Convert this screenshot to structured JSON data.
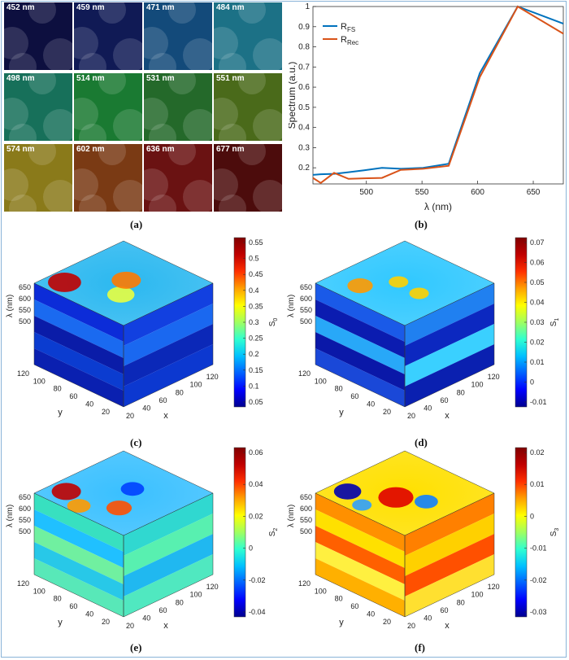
{
  "figure": {
    "panel_labels": [
      "(a)",
      "(b)",
      "(c)",
      "(d)",
      "(e)",
      "(f)"
    ]
  },
  "tiles": [
    {
      "label": "452 nm",
      "color": "#0d0f3f"
    },
    {
      "label": "459 nm",
      "color": "#101a55"
    },
    {
      "label": "471 nm",
      "color": "#134a7a"
    },
    {
      "label": "484 nm",
      "color": "#1c7186"
    },
    {
      "label": "498 nm",
      "color": "#17705a"
    },
    {
      "label": "514 nm",
      "color": "#1a7a32"
    },
    {
      "label": "531 nm",
      "color": "#24692a"
    },
    {
      "label": "551 nm",
      "color": "#4a6a1a"
    },
    {
      "label": "574 nm",
      "color": "#8a7a1a"
    },
    {
      "label": "602 nm",
      "color": "#7a3a14"
    },
    {
      "label": "636 nm",
      "color": "#6a1212"
    },
    {
      "label": "677 nm",
      "color": "#4c0c0c"
    }
  ],
  "chart_data": {
    "type": "line",
    "xlabel": "λ (nm)",
    "ylabel": "Spectrum (a.u.)",
    "xlim": [
      452,
      677
    ],
    "ylim": [
      0.12,
      1.0
    ],
    "xticks": [
      500,
      550,
      600,
      650
    ],
    "yticks": [
      0.2,
      0.3,
      0.4,
      0.5,
      0.6,
      0.7,
      0.8,
      0.9,
      1
    ],
    "legend": "top-left",
    "series": [
      {
        "name": "R",
        "subscript": "FS",
        "color": "#0072bd",
        "x": [
          452,
          459,
          471,
          484,
          498,
          514,
          531,
          551,
          574,
          602,
          636,
          677
        ],
        "y": [
          0.165,
          0.168,
          0.17,
          0.178,
          0.188,
          0.2,
          0.195,
          0.2,
          0.22,
          0.67,
          1.0,
          0.915
        ]
      },
      {
        "name": "R",
        "subscript": "Rec",
        "color": "#d95319",
        "x": [
          452,
          459,
          471,
          484,
          498,
          514,
          531,
          551,
          574,
          602,
          636,
          677
        ],
        "y": [
          0.15,
          0.125,
          0.175,
          0.145,
          0.148,
          0.15,
          0.19,
          0.195,
          0.21,
          0.65,
          1.0,
          0.865
        ]
      }
    ]
  },
  "cubes": [
    {
      "label": "(c)",
      "quantity": "S",
      "subscript": "0",
      "ticks": [
        "0.55",
        "0.5",
        "0.45",
        "0.4",
        "0.35",
        "0.3",
        "0.25",
        "0.2",
        "0.15",
        "0.1",
        "0.05"
      ]
    },
    {
      "label": "(d)",
      "quantity": "S",
      "subscript": "1",
      "ticks": [
        "0.07",
        "0.06",
        "0.05",
        "0.04",
        "0.03",
        "0.02",
        "0.01",
        "0",
        "-0.01"
      ]
    },
    {
      "label": "(e)",
      "quantity": "S",
      "subscript": "2",
      "ticks": [
        "0.06",
        "0.04",
        "0.02",
        "0",
        "-0.02",
        "-0.04"
      ]
    },
    {
      "label": "(f)",
      "quantity": "S",
      "subscript": "3",
      "ticks": [
        "0.02",
        "0.01",
        "0",
        "-0.01",
        "-0.02",
        "-0.03"
      ]
    }
  ],
  "cube_axes": {
    "lambda_label": "λ (nm)",
    "lambda_ticks": [
      "650",
      "600",
      "550",
      "500"
    ],
    "y_label": "y",
    "y_ticks": [
      "120",
      "100",
      "80",
      "60",
      "40",
      "20"
    ],
    "x_label": "x",
    "x_ticks": [
      "20",
      "40",
      "60",
      "80",
      "100",
      "120"
    ]
  }
}
